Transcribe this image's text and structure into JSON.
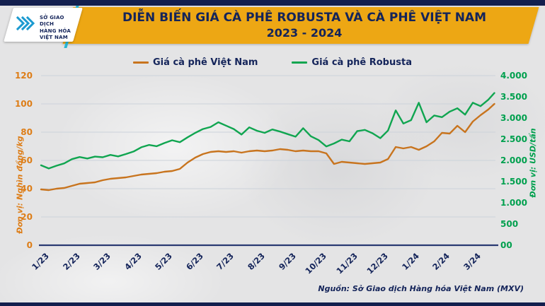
{
  "header": {
    "logo": {
      "line1": "SỞ GIAO DỊCH",
      "line2": "HÀNG HÓA",
      "line3": "VIỆT NAM",
      "tm": "™"
    },
    "title_line1": "DIỄN BIẾN GIÁ CÀ PHÊ ROBUSTA VÀ CÀ PHÊ VIỆT NAM",
    "title_line2": "2023 - 2024"
  },
  "legend": [
    {
      "label": "Giá cà phê Việt Nam",
      "color": "#c8741e"
    },
    {
      "label": "Giá cà phê Robusta",
      "color": "#10a550"
    }
  ],
  "chart_data": {
    "type": "line",
    "title": "DIỄN BIẾN GIÁ CÀ PHÊ ROBUSTA VÀ CÀ PHÊ VIỆT NAM 2023 - 2024",
    "x_tick_labels": [
      "1/23",
      "2/23",
      "3/23",
      "4/23",
      "5/23",
      "6/23",
      "7/23",
      "8/23",
      "9/23",
      "10/23",
      "11/23",
      "12/23",
      "1/24",
      "2/24",
      "3/24"
    ],
    "grid": true,
    "legend_position": "top",
    "left_axis": {
      "label": "Đơn vị: Nghìn đồng/kg",
      "min": 0,
      "max": 120,
      "step": 20,
      "tick_labels": [
        "0",
        "20",
        "40",
        "60",
        "80",
        "100",
        "120"
      ],
      "color": "#dd7d17"
    },
    "right_axis": {
      "label": "Đơn vị: USD/tấn",
      "min": 0,
      "max": 4000,
      "step": 500,
      "tick_labels": [
        "00",
        "500",
        "1.000",
        "1.500",
        "2.000",
        "2.500",
        "3.000",
        "3.500",
        "4.000"
      ],
      "color": "#00a04e"
    },
    "series": [
      {
        "name": "Giá cà phê Việt Nam",
        "axis": "left",
        "unit": "nghìn đồng/kg",
        "color": "#c8741e",
        "x": [
          0,
          0.25,
          0.5,
          0.75,
          1,
          1.25,
          1.5,
          1.75,
          2,
          2.25,
          2.5,
          2.75,
          3,
          3.25,
          3.5,
          3.75,
          4,
          4.25,
          4.5,
          4.75,
          5,
          5.25,
          5.5,
          5.75,
          6,
          6.25,
          6.5,
          6.75,
          7,
          7.25,
          7.5,
          7.75,
          8,
          8.25,
          8.5,
          8.75,
          9,
          9.25,
          9.5,
          9.75,
          10,
          10.25,
          10.5,
          10.75,
          11,
          11.25,
          11.5,
          11.75,
          12,
          12.25,
          12.5,
          12.75,
          13,
          13.25,
          13.5,
          13.75,
          14,
          14.25,
          14.5,
          14.7
        ],
        "values": [
          39.5,
          39,
          40,
          40.5,
          42,
          43.5,
          44,
          44.5,
          46,
          47,
          47.5,
          48,
          49,
          50,
          50.5,
          51,
          52,
          52.5,
          54,
          58.5,
          62,
          64.5,
          66,
          66.5,
          66,
          66.5,
          65.5,
          66.5,
          67,
          66.5,
          67,
          68,
          67.5,
          66.5,
          67,
          66.5,
          66.5,
          65,
          57.5,
          59,
          58.5,
          58,
          57.5,
          58,
          58.5,
          61,
          69.5,
          68.5,
          69.5,
          67.5,
          70,
          73.5,
          79.5,
          79,
          84.5,
          80,
          87.5,
          92,
          96,
          100
        ]
      },
      {
        "name": "Giá cà phê Robusta",
        "axis": "right",
        "unit": "USD/tấn",
        "color": "#10a550",
        "x": [
          0,
          0.25,
          0.5,
          0.75,
          1,
          1.25,
          1.5,
          1.75,
          2,
          2.25,
          2.5,
          2.75,
          3,
          3.25,
          3.5,
          3.75,
          4,
          4.25,
          4.5,
          4.75,
          5,
          5.25,
          5.5,
          5.75,
          6,
          6.25,
          6.5,
          6.75,
          7,
          7.25,
          7.5,
          7.75,
          8,
          8.25,
          8.5,
          8.75,
          9,
          9.25,
          9.5,
          9.75,
          10,
          10.25,
          10.5,
          10.75,
          11,
          11.25,
          11.5,
          11.75,
          12,
          12.25,
          12.5,
          12.75,
          13,
          13.25,
          13.5,
          13.75,
          14,
          14.25,
          14.5,
          14.7
        ],
        "values": [
          1885,
          1810,
          1875,
          1930,
          2030,
          2080,
          2045,
          2090,
          2075,
          2130,
          2095,
          2150,
          2210,
          2310,
          2365,
          2335,
          2410,
          2475,
          2430,
          2545,
          2650,
          2740,
          2790,
          2900,
          2820,
          2740,
          2610,
          2780,
          2700,
          2650,
          2730,
          2680,
          2620,
          2560,
          2760,
          2570,
          2480,
          2330,
          2400,
          2490,
          2450,
          2690,
          2720,
          2640,
          2525,
          2705,
          3180,
          2870,
          2950,
          3360,
          2900,
          3060,
          3020,
          3150,
          3230,
          3080,
          3360,
          3280,
          3430,
          3590
        ]
      }
    ]
  },
  "source": "Nguồn: Sở Giao dịch Hàng hóa Việt Nam (MXV)",
  "colors": {
    "navy": "#14245a",
    "banner_yellow": "#eda714",
    "cyan_accent": "#28b7d4",
    "orange_line": "#c8741e",
    "green_line": "#10a550",
    "gridline": "#ccd2da",
    "background": "#e4e4e5"
  }
}
